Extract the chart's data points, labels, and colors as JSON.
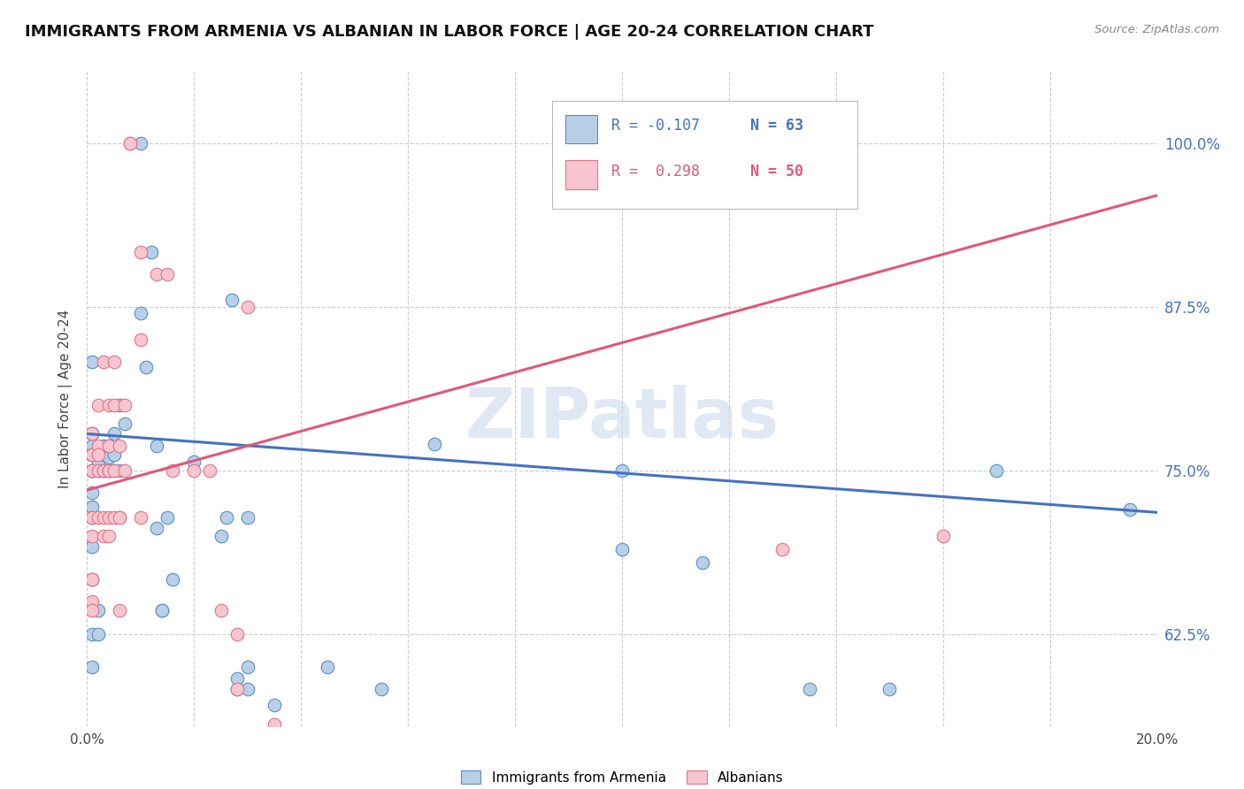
{
  "title": "IMMIGRANTS FROM ARMENIA VS ALBANIAN IN LABOR FORCE | AGE 20-24 CORRELATION CHART",
  "source": "Source: ZipAtlas.com",
  "ylabel": "In Labor Force | Age 20-24",
  "yticks_labels": [
    "62.5%",
    "75.0%",
    "87.5%",
    "100.0%"
  ],
  "ytick_vals": [
    0.625,
    0.75,
    0.875,
    1.0
  ],
  "xmin": 0.0,
  "xmax": 0.2,
  "ymin": 0.555,
  "ymax": 1.055,
  "legend_label_blue": "Immigrants from Armenia",
  "legend_label_pink": "Albanians",
  "legend_R_blue": "R = -0.107",
  "legend_N_blue": "N = 63",
  "legend_R_pink": "R =  0.298",
  "legend_N_pink": "N = 50",
  "blue_fill": "#b8cfe8",
  "pink_fill": "#f7c5d0",
  "blue_edge": "#5b8ec4",
  "pink_edge": "#e0748a",
  "blue_line": "#4472c4",
  "pink_line": "#e05878",
  "watermark": "ZIPatlas",
  "blue_scatter": [
    [
      0.001,
      0.833
    ],
    [
      0.001,
      0.75
    ],
    [
      0.001,
      0.722
    ],
    [
      0.001,
      0.778
    ],
    [
      0.001,
      0.75
    ],
    [
      0.001,
      0.762
    ],
    [
      0.001,
      0.769
    ],
    [
      0.001,
      0.762
    ],
    [
      0.001,
      0.75
    ],
    [
      0.001,
      0.733
    ],
    [
      0.001,
      0.778
    ],
    [
      0.001,
      0.714
    ],
    [
      0.001,
      0.692
    ],
    [
      0.001,
      0.667
    ],
    [
      0.001,
      0.625
    ],
    [
      0.001,
      0.6
    ],
    [
      0.002,
      0.75
    ],
    [
      0.002,
      0.757
    ],
    [
      0.002,
      0.643
    ],
    [
      0.002,
      0.625
    ],
    [
      0.003,
      0.762
    ],
    [
      0.003,
      0.75
    ],
    [
      0.003,
      0.769
    ],
    [
      0.004,
      0.75
    ],
    [
      0.004,
      0.76
    ],
    [
      0.004,
      0.769
    ],
    [
      0.005,
      0.778
    ],
    [
      0.005,
      0.762
    ],
    [
      0.005,
      0.75
    ],
    [
      0.006,
      0.8
    ],
    [
      0.006,
      0.75
    ],
    [
      0.006,
      0.714
    ],
    [
      0.007,
      0.786
    ],
    [
      0.01,
      0.87
    ],
    [
      0.01,
      1.0
    ],
    [
      0.011,
      0.829
    ],
    [
      0.012,
      0.917
    ],
    [
      0.013,
      0.769
    ],
    [
      0.013,
      0.706
    ],
    [
      0.014,
      0.643
    ],
    [
      0.014,
      0.643
    ],
    [
      0.015,
      0.714
    ],
    [
      0.016,
      0.667
    ],
    [
      0.02,
      0.757
    ],
    [
      0.025,
      0.7
    ],
    [
      0.026,
      0.714
    ],
    [
      0.027,
      0.88
    ],
    [
      0.028,
      0.583
    ],
    [
      0.028,
      0.591
    ],
    [
      0.03,
      0.6
    ],
    [
      0.03,
      0.714
    ],
    [
      0.03,
      0.583
    ],
    [
      0.035,
      0.571
    ],
    [
      0.045,
      0.6
    ],
    [
      0.055,
      0.583
    ],
    [
      0.065,
      0.77
    ],
    [
      0.1,
      0.75
    ],
    [
      0.1,
      0.69
    ],
    [
      0.115,
      0.68
    ],
    [
      0.135,
      0.583
    ],
    [
      0.15,
      0.583
    ],
    [
      0.17,
      0.75
    ],
    [
      0.195,
      0.72
    ]
  ],
  "pink_scatter": [
    [
      0.001,
      0.75
    ],
    [
      0.001,
      0.778
    ],
    [
      0.001,
      0.762
    ],
    [
      0.001,
      0.714
    ],
    [
      0.001,
      0.7
    ],
    [
      0.001,
      0.667
    ],
    [
      0.001,
      0.65
    ],
    [
      0.001,
      0.643
    ],
    [
      0.002,
      0.8
    ],
    [
      0.002,
      0.769
    ],
    [
      0.002,
      0.762
    ],
    [
      0.002,
      0.75
    ],
    [
      0.002,
      0.714
    ],
    [
      0.003,
      0.833
    ],
    [
      0.003,
      0.75
    ],
    [
      0.003,
      0.75
    ],
    [
      0.003,
      0.714
    ],
    [
      0.003,
      0.7
    ],
    [
      0.004,
      0.8
    ],
    [
      0.004,
      0.769
    ],
    [
      0.004,
      0.75
    ],
    [
      0.004,
      0.75
    ],
    [
      0.004,
      0.714
    ],
    [
      0.004,
      0.7
    ],
    [
      0.005,
      0.833
    ],
    [
      0.005,
      0.8
    ],
    [
      0.005,
      0.75
    ],
    [
      0.005,
      0.714
    ],
    [
      0.006,
      0.769
    ],
    [
      0.006,
      0.714
    ],
    [
      0.006,
      0.643
    ],
    [
      0.007,
      0.8
    ],
    [
      0.007,
      0.75
    ],
    [
      0.008,
      1.0
    ],
    [
      0.008,
      1.0
    ],
    [
      0.01,
      0.917
    ],
    [
      0.01,
      0.85
    ],
    [
      0.01,
      0.714
    ],
    [
      0.013,
      0.9
    ],
    [
      0.015,
      0.9
    ],
    [
      0.016,
      0.75
    ],
    [
      0.02,
      0.75
    ],
    [
      0.023,
      0.75
    ],
    [
      0.025,
      0.643
    ],
    [
      0.028,
      0.583
    ],
    [
      0.028,
      0.625
    ],
    [
      0.03,
      0.875
    ],
    [
      0.035,
      0.556
    ],
    [
      0.13,
      0.69
    ],
    [
      0.16,
      0.7
    ]
  ],
  "blue_trendline": [
    [
      0.0,
      0.778
    ],
    [
      0.2,
      0.718
    ]
  ],
  "pink_trendline": [
    [
      0.0,
      0.735
    ],
    [
      0.2,
      0.96
    ]
  ]
}
